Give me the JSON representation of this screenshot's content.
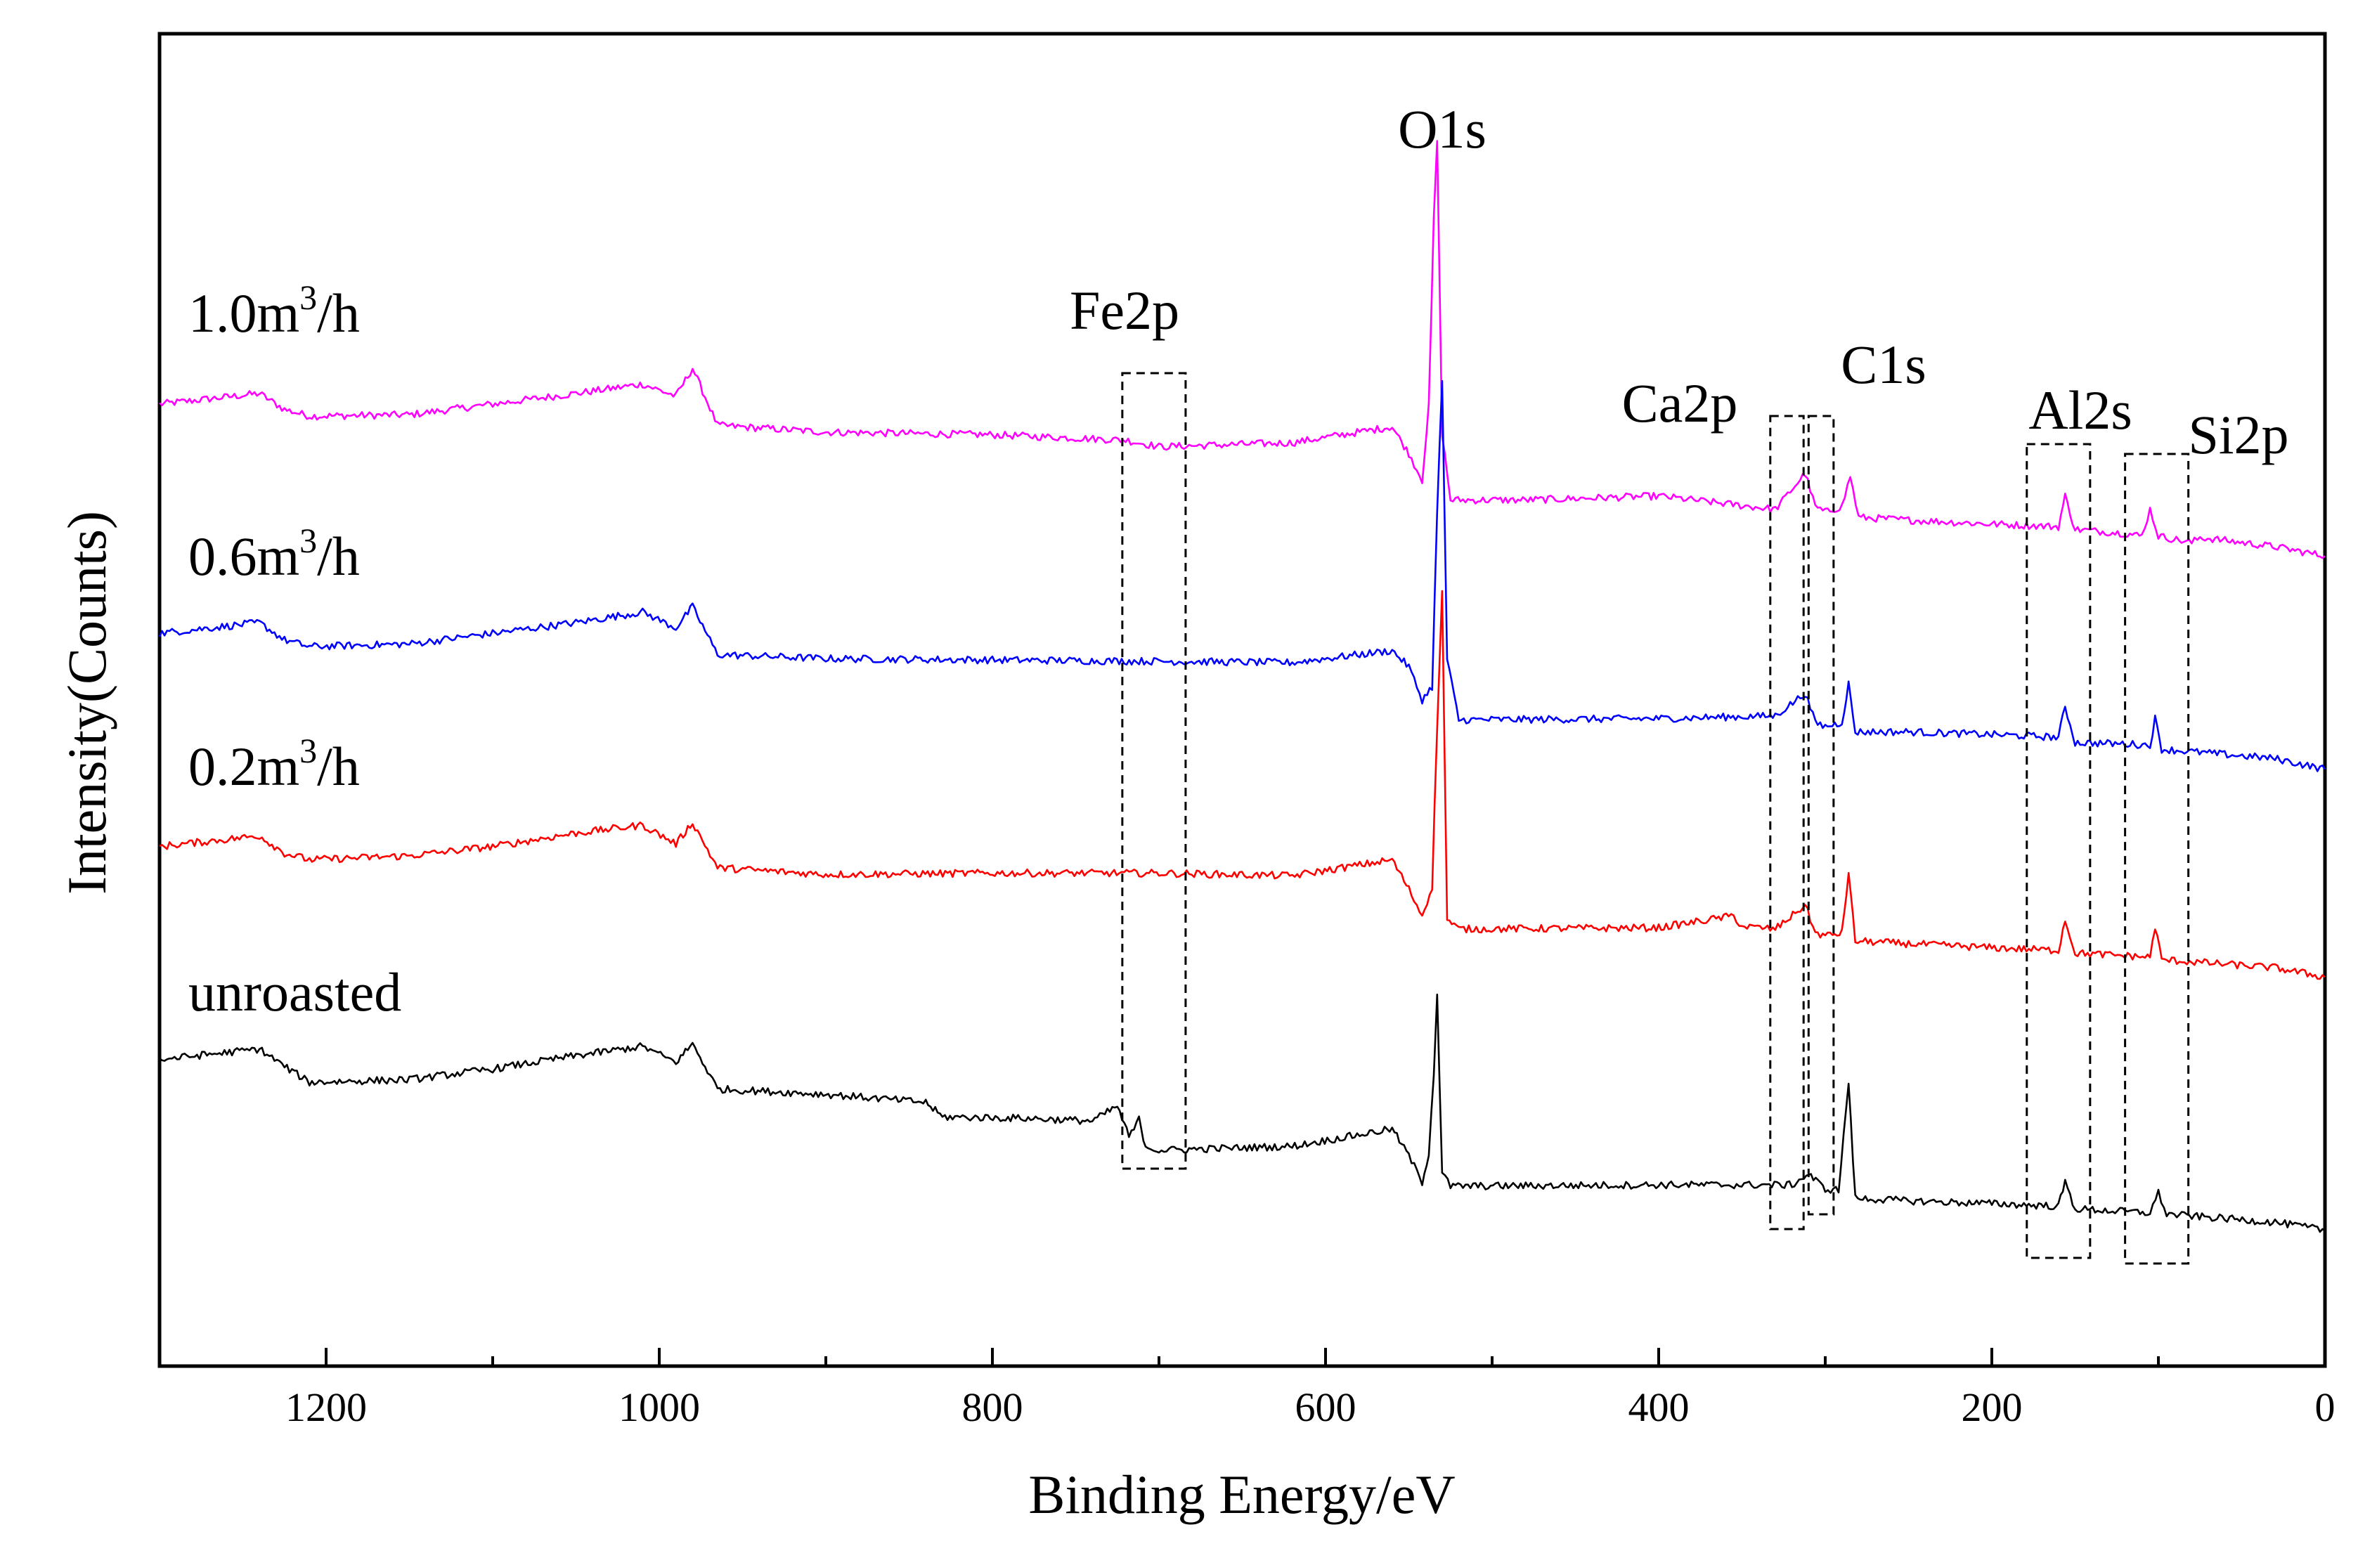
{
  "chart_data": {
    "type": "line",
    "title": "",
    "xlabel": "Binding Energy/eV",
    "ylabel": "Intensity(Counts)",
    "xlim": [
      1300,
      0
    ],
    "x_reversed": true,
    "ylim": [
      0,
      100
    ],
    "y_ticks_visible": false,
    "grid": false,
    "x_ticks": [
      1200,
      1000,
      800,
      600,
      400,
      200,
      0
    ],
    "x_tick_labels": [
      "1200",
      "1000",
      "800",
      "600",
      "400",
      "200",
      "0"
    ],
    "series": [
      {
        "name": "1.0m3/h",
        "label_main": "1.0m",
        "label_sup": "3",
        "label_tail": "/h",
        "color": "#ff00ff",
        "x": [
          1300,
          1240,
          1225,
          1210,
          1150,
          1100,
          1050,
          1010,
          990,
          980,
          965,
          900,
          800,
          720,
          700,
          620,
          560,
          550,
          542,
          538,
          535,
          533,
          530,
          525,
          480,
          400,
          330,
          312,
          306,
          300,
          290,
          285,
          280,
          250,
          200,
          160,
          156,
          150,
          120,
          110,
          105,
          100,
          80,
          75,
          30,
          0
        ],
        "y": [
          72.2,
          73.0,
          71.8,
          71.3,
          71.4,
          72.2,
          73.0,
          73.7,
          72.8,
          74.9,
          70.6,
          70.1,
          69.9,
          69.5,
          69.0,
          69.3,
          70.5,
          68.5,
          66.5,
          72.0,
          86.0,
          92.0,
          70.0,
          65.0,
          65.0,
          65.3,
          64.3,
          67.0,
          64.5,
          64.1,
          64.5,
          66.8,
          63.7,
          63.5,
          63.2,
          63.0,
          65.3,
          62.8,
          62.5,
          62.3,
          64.3,
          62.3,
          61.8,
          62.2,
          61.5,
          60.8
        ]
      },
      {
        "name": "0.6m3/h",
        "label_main": "0.6m",
        "label_sup": "3",
        "label_tail": "/h",
        "color": "#0000ff",
        "x": [
          1300,
          1240,
          1225,
          1210,
          1150,
          1100,
          1050,
          1010,
          990,
          980,
          965,
          900,
          800,
          700,
          620,
          560,
          550,
          542,
          536,
          533,
          530,
          527,
          520,
          400,
          330,
          312,
          306,
          300,
          290,
          286,
          282,
          250,
          200,
          160,
          156,
          150,
          120,
          105,
          102,
          98,
          30,
          0
        ],
        "y": [
          55.0,
          55.8,
          54.5,
          54.0,
          54.2,
          55.0,
          55.8,
          56.6,
          55.4,
          57.0,
          53.4,
          53.1,
          53.0,
          52.9,
          52.8,
          53.7,
          52.5,
          50.0,
          51.0,
          64.0,
          74.0,
          53.0,
          48.5,
          48.6,
          48.8,
          50.5,
          48.3,
          48.0,
          48.3,
          51.2,
          47.6,
          47.6,
          47.4,
          47.2,
          49.5,
          46.8,
          46.7,
          46.6,
          48.6,
          46.3,
          45.6,
          44.8
        ]
      },
      {
        "name": "0.2m3/h",
        "label_main": "0.2m",
        "label_sup": "3",
        "label_tail": "/h",
        "color": "#ff0000",
        "x": [
          1300,
          1240,
          1225,
          1210,
          1150,
          1100,
          1050,
          1010,
          990,
          980,
          965,
          900,
          800,
          700,
          620,
          560,
          550,
          542,
          536,
          533,
          530,
          527,
          520,
          400,
          355,
          350,
          330,
          312,
          306,
          300,
          290,
          286,
          282,
          250,
          200,
          160,
          156,
          150,
          120,
          105,
          102,
          98,
          30,
          0
        ],
        "y": [
          39.0,
          39.8,
          38.5,
          38.0,
          38.3,
          39.0,
          40.0,
          40.6,
          39.2,
          40.8,
          37.4,
          36.9,
          37.0,
          37.0,
          36.8,
          38.0,
          35.8,
          33.8,
          36.0,
          48.0,
          58.0,
          33.5,
          32.8,
          32.9,
          33.8,
          33.0,
          32.8,
          34.6,
          32.5,
          32.3,
          32.5,
          37.0,
          31.9,
          31.7,
          31.4,
          31.2,
          33.5,
          31.0,
          30.8,
          30.7,
          33.0,
          30.5,
          29.9,
          29.2
        ]
      },
      {
        "name": "unroasted",
        "label_main": "unroasted",
        "label_sup": "",
        "label_tail": "",
        "color": "#000000",
        "x": [
          1300,
          1240,
          1225,
          1210,
          1150,
          1100,
          1050,
          1010,
          990,
          980,
          965,
          900,
          840,
          830,
          780,
          740,
          725,
          718,
          712,
          708,
          700,
          620,
          560,
          550,
          542,
          538,
          535,
          533,
          530,
          525,
          400,
          320,
          310,
          300,
          292,
          286,
          282,
          250,
          200,
          160,
          156,
          150,
          120,
          105,
          100,
          95,
          30,
          0
        ],
        "y": [
          23.0,
          23.8,
          22.5,
          21.3,
          21.5,
          22.3,
          23.3,
          24.0,
          22.8,
          24.2,
          20.8,
          20.4,
          19.8,
          18.7,
          18.6,
          18.4,
          19.5,
          17.2,
          18.5,
          16.5,
          16.2,
          16.5,
          17.8,
          15.8,
          13.8,
          16.0,
          22.0,
          28.0,
          14.5,
          13.5,
          13.6,
          13.6,
          14.4,
          13.3,
          13.2,
          21.3,
          12.6,
          12.4,
          12.2,
          12.0,
          13.8,
          11.8,
          11.6,
          11.5,
          13.0,
          11.4,
          10.8,
          10.2
        ]
      }
    ],
    "peak_annotations": [
      {
        "label": "O1s",
        "x": 531
      },
      {
        "label": "Fe2p",
        "x_range": [
          722,
          684
        ]
      },
      {
        "label": "Ca2p",
        "x_range": [
          333,
          313
        ]
      },
      {
        "label": "C1s",
        "x_range": [
          310,
          295
        ]
      },
      {
        "label": "Al2s",
        "x_range": [
          179,
          141
        ]
      },
      {
        "label": "Si2p",
        "x_range": [
          120,
          82
        ]
      }
    ]
  }
}
